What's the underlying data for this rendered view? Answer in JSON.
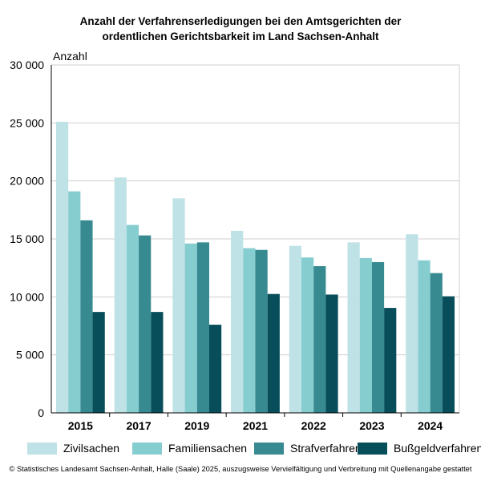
{
  "chart_data": {
    "type": "bar",
    "title_lines": [
      "Anzahl der Verfahrenserledigungen bei den Amtsgerichten der",
      "ordentlichen Gerichtsbarkeit im Land Sachsen-Anhalt"
    ],
    "ylabel": "Anzahl",
    "xlabel": "",
    "ylim": [
      0,
      30000
    ],
    "yticks": [
      0,
      5000,
      10000,
      15000,
      20000,
      25000,
      30000
    ],
    "ytick_labels": [
      "0",
      "5 000",
      "10 000",
      "15 000",
      "20 000",
      "25 000",
      "30 000"
    ],
    "grid": true,
    "legend_position": "bottom",
    "categories": [
      "2015",
      "2017",
      "2019",
      "2021",
      "2022",
      "2023",
      "2024"
    ],
    "series": [
      {
        "name": "Zivilsachen",
        "color": "#bfe2e6",
        "values": [
          25100,
          20300,
          18500,
          15700,
          14400,
          14700,
          15400
        ]
      },
      {
        "name": "Familiensachen",
        "color": "#86cdd0",
        "values": [
          19100,
          16200,
          14600,
          14200,
          13400,
          13350,
          13150
        ]
      },
      {
        "name": "Strafverfahren",
        "color": "#388a91",
        "values": [
          16600,
          15300,
          14700,
          14050,
          12650,
          13000,
          12050
        ]
      },
      {
        "name": "Bußgeldverfahren",
        "color": "#074e5a",
        "values": [
          8700,
          8700,
          7600,
          10250,
          10200,
          9050,
          10050
        ]
      }
    ]
  },
  "footer": {
    "copyright": "© Statistisches Landesamt Sachsen-Anhalt, Halle (Saale) 2025, auszugsweise Vervielfältigung und Verbreitung mit Quellenangabe gestattet"
  }
}
